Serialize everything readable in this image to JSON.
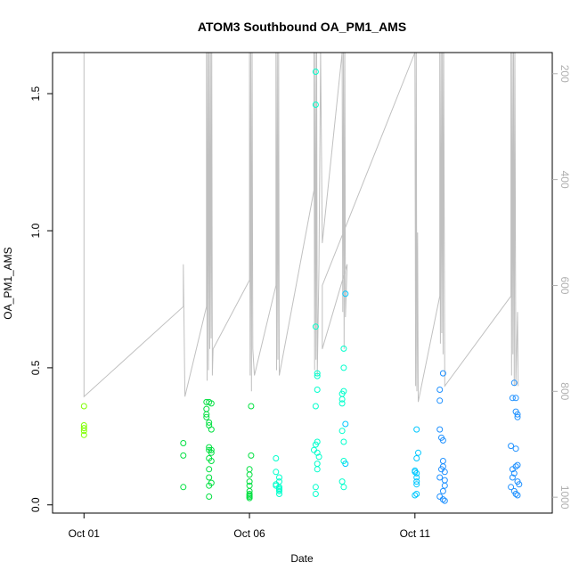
{
  "chart_data": {
    "type": "scatter",
    "title": "ATOM3 Southbound OA_PM1_AMS",
    "xlabel": "Date",
    "ylabel": "OA_PM1_AMS",
    "x_ticks": [
      {
        "value": 1,
        "label": "Oct 01"
      },
      {
        "value": 6,
        "label": "Oct 06"
      },
      {
        "value": 11,
        "label": "Oct 11"
      }
    ],
    "xlim": [
      0.05,
      15.15
    ],
    "ylim": [
      -0.03,
      1.65
    ],
    "y_ticks": [
      0.0,
      0.5,
      1.0,
      1.5
    ],
    "y_tick_labels": [
      "0.0",
      "0.5",
      "1.0",
      "1.5"
    ],
    "y2_ticks": [
      200,
      400,
      600,
      800,
      1000
    ],
    "y2_tick_labels": [
      "200",
      "400",
      "600",
      "800",
      "1000"
    ],
    "y2lim": [
      1030,
      160
    ],
    "altitude_line_color": "#c0c0c0",
    "point_color_scale": [
      "#7fff00",
      "#00e040",
      "#00ffcc",
      "#00c8ff",
      "#1e90ff"
    ],
    "points": [
      {
        "x": 1.0,
        "y": 0.36
      },
      {
        "x": 1.0,
        "y": 0.29
      },
      {
        "x": 1.0,
        "y": 0.28
      },
      {
        "x": 1.0,
        "y": 0.27
      },
      {
        "x": 1.0,
        "y": 0.255
      },
      {
        "x": 4.0,
        "y": 0.225
      },
      {
        "x": 4.0,
        "y": 0.18
      },
      {
        "x": 4.0,
        "y": 0.065
      },
      {
        "x": 4.7,
        "y": 0.375
      },
      {
        "x": 4.7,
        "y": 0.35
      },
      {
        "x": 4.7,
        "y": 0.33
      },
      {
        "x": 4.7,
        "y": 0.32
      },
      {
        "x": 4.78,
        "y": 0.375
      },
      {
        "x": 4.78,
        "y": 0.3
      },
      {
        "x": 4.78,
        "y": 0.29
      },
      {
        "x": 4.78,
        "y": 0.21
      },
      {
        "x": 4.78,
        "y": 0.2
      },
      {
        "x": 4.78,
        "y": 0.17
      },
      {
        "x": 4.78,
        "y": 0.13
      },
      {
        "x": 4.78,
        "y": 0.1
      },
      {
        "x": 4.85,
        "y": 0.37
      },
      {
        "x": 4.85,
        "y": 0.275
      },
      {
        "x": 4.85,
        "y": 0.2
      },
      {
        "x": 4.85,
        "y": 0.19
      },
      {
        "x": 4.85,
        "y": 0.16
      },
      {
        "x": 4.85,
        "y": 0.08
      },
      {
        "x": 4.78,
        "y": 0.07
      },
      {
        "x": 4.78,
        "y": 0.03
      },
      {
        "x": 6.05,
        "y": 0.36
      },
      {
        "x": 6.05,
        "y": 0.18
      },
      {
        "x": 6.0,
        "y": 0.13
      },
      {
        "x": 6.0,
        "y": 0.11
      },
      {
        "x": 6.0,
        "y": 0.085
      },
      {
        "x": 6.0,
        "y": 0.07
      },
      {
        "x": 6.0,
        "y": 0.05
      },
      {
        "x": 6.0,
        "y": 0.04
      },
      {
        "x": 6.0,
        "y": 0.035
      },
      {
        "x": 6.0,
        "y": 0.03
      },
      {
        "x": 6.0,
        "y": 0.025
      },
      {
        "x": 6.8,
        "y": 0.17
      },
      {
        "x": 6.8,
        "y": 0.12
      },
      {
        "x": 6.9,
        "y": 0.1
      },
      {
        "x": 6.9,
        "y": 0.085
      },
      {
        "x": 6.8,
        "y": 0.075
      },
      {
        "x": 6.8,
        "y": 0.07
      },
      {
        "x": 6.9,
        "y": 0.065
      },
      {
        "x": 6.9,
        "y": 0.06
      },
      {
        "x": 6.9,
        "y": 0.055
      },
      {
        "x": 6.9,
        "y": 0.05
      },
      {
        "x": 6.9,
        "y": 0.04
      },
      {
        "x": 8.0,
        "y": 1.58
      },
      {
        "x": 8.0,
        "y": 1.46
      },
      {
        "x": 8.0,
        "y": 0.65
      },
      {
        "x": 8.05,
        "y": 0.48
      },
      {
        "x": 8.05,
        "y": 0.47
      },
      {
        "x": 8.05,
        "y": 0.42
      },
      {
        "x": 8.0,
        "y": 0.36
      },
      {
        "x": 8.05,
        "y": 0.23
      },
      {
        "x": 8.0,
        "y": 0.22
      },
      {
        "x": 7.95,
        "y": 0.2
      },
      {
        "x": 8.05,
        "y": 0.19
      },
      {
        "x": 8.1,
        "y": 0.175
      },
      {
        "x": 8.05,
        "y": 0.15
      },
      {
        "x": 8.05,
        "y": 0.13
      },
      {
        "x": 8.0,
        "y": 0.065
      },
      {
        "x": 8.0,
        "y": 0.04
      },
      {
        "x": 8.9,
        "y": 0.77
      },
      {
        "x": 8.85,
        "y": 0.57
      },
      {
        "x": 8.85,
        "y": 0.5
      },
      {
        "x": 8.85,
        "y": 0.415
      },
      {
        "x": 8.8,
        "y": 0.405
      },
      {
        "x": 8.8,
        "y": 0.385
      },
      {
        "x": 8.8,
        "y": 0.37
      },
      {
        "x": 8.9,
        "y": 0.295
      },
      {
        "x": 8.8,
        "y": 0.27
      },
      {
        "x": 8.85,
        "y": 0.23
      },
      {
        "x": 8.85,
        "y": 0.16
      },
      {
        "x": 8.9,
        "y": 0.15
      },
      {
        "x": 8.8,
        "y": 0.085
      },
      {
        "x": 8.85,
        "y": 0.065
      },
      {
        "x": 11.05,
        "y": 0.275
      },
      {
        "x": 11.1,
        "y": 0.19
      },
      {
        "x": 11.05,
        "y": 0.17
      },
      {
        "x": 11.0,
        "y": 0.125
      },
      {
        "x": 11.0,
        "y": 0.12
      },
      {
        "x": 11.05,
        "y": 0.115
      },
      {
        "x": 11.05,
        "y": 0.1
      },
      {
        "x": 11.05,
        "y": 0.085
      },
      {
        "x": 11.05,
        "y": 0.075
      },
      {
        "x": 11.05,
        "y": 0.04
      },
      {
        "x": 11.0,
        "y": 0.035
      },
      {
        "x": 11.85,
        "y": 0.48
      },
      {
        "x": 11.75,
        "y": 0.42
      },
      {
        "x": 11.75,
        "y": 0.38
      },
      {
        "x": 11.75,
        "y": 0.275
      },
      {
        "x": 11.8,
        "y": 0.245
      },
      {
        "x": 11.85,
        "y": 0.235
      },
      {
        "x": 11.85,
        "y": 0.16
      },
      {
        "x": 11.85,
        "y": 0.14
      },
      {
        "x": 11.8,
        "y": 0.13
      },
      {
        "x": 11.9,
        "y": 0.12
      },
      {
        "x": 11.75,
        "y": 0.1
      },
      {
        "x": 11.9,
        "y": 0.09
      },
      {
        "x": 11.9,
        "y": 0.07
      },
      {
        "x": 11.85,
        "y": 0.05
      },
      {
        "x": 11.75,
        "y": 0.03
      },
      {
        "x": 11.85,
        "y": 0.02
      },
      {
        "x": 11.9,
        "y": 0.015
      },
      {
        "x": 14.0,
        "y": 0.445
      },
      {
        "x": 13.95,
        "y": 0.39
      },
      {
        "x": 14.05,
        "y": 0.39
      },
      {
        "x": 14.05,
        "y": 0.34
      },
      {
        "x": 14.1,
        "y": 0.33
      },
      {
        "x": 14.1,
        "y": 0.32
      },
      {
        "x": 13.9,
        "y": 0.215
      },
      {
        "x": 14.05,
        "y": 0.205
      },
      {
        "x": 14.1,
        "y": 0.145
      },
      {
        "x": 14.05,
        "y": 0.14
      },
      {
        "x": 13.95,
        "y": 0.13
      },
      {
        "x": 14.0,
        "y": 0.115
      },
      {
        "x": 13.95,
        "y": 0.1
      },
      {
        "x": 14.1,
        "y": 0.085
      },
      {
        "x": 14.15,
        "y": 0.075
      },
      {
        "x": 13.9,
        "y": 0.065
      },
      {
        "x": 14.0,
        "y": 0.05
      },
      {
        "x": 14.05,
        "y": 0.04
      },
      {
        "x": 14.1,
        "y": 0.035
      }
    ],
    "altitude_series": [
      [
        1.0,
        160
      ],
      [
        1.0,
        810
      ],
      [
        4.0,
        640
      ],
      [
        4.0,
        560
      ],
      [
        4.05,
        810
      ],
      [
        4.7,
        640
      ],
      [
        4.7,
        160
      ],
      [
        4.72,
        780
      ],
      [
        4.74,
        160
      ],
      [
        4.76,
        760
      ],
      [
        4.78,
        160
      ],
      [
        4.8,
        720
      ],
      [
        4.82,
        160
      ],
      [
        4.84,
        700
      ],
      [
        4.86,
        160
      ],
      [
        4.88,
        770
      ],
      [
        4.9,
        720
      ],
      [
        6.0,
        590
      ],
      [
        6.0,
        160
      ],
      [
        6.02,
        770
      ],
      [
        6.04,
        160
      ],
      [
        6.06,
        800
      ],
      [
        6.08,
        160
      ],
      [
        6.1,
        720
      ],
      [
        6.15,
        770
      ],
      [
        6.8,
        600
      ],
      [
        6.8,
        160
      ],
      [
        6.82,
        760
      ],
      [
        6.84,
        160
      ],
      [
        6.86,
        740
      ],
      [
        6.88,
        160
      ],
      [
        6.9,
        770
      ],
      [
        7.95,
        420
      ],
      [
        7.95,
        160
      ],
      [
        7.97,
        760
      ],
      [
        7.99,
        160
      ],
      [
        8.01,
        740
      ],
      [
        8.03,
        160
      ],
      [
        8.05,
        770
      ],
      [
        8.1,
        560
      ],
      [
        8.15,
        160
      ],
      [
        8.2,
        520
      ],
      [
        8.8,
        160
      ],
      [
        8.82,
        650
      ],
      [
        8.84,
        160
      ],
      [
        8.86,
        720
      ],
      [
        8.88,
        160
      ],
      [
        8.9,
        660
      ],
      [
        8.95,
        560
      ],
      [
        8.2,
        720
      ],
      [
        8.2,
        600
      ],
      [
        11.0,
        160
      ],
      [
        11.02,
        790
      ],
      [
        11.04,
        160
      ],
      [
        11.06,
        800
      ],
      [
        11.08,
        500
      ],
      [
        11.1,
        820
      ],
      [
        11.75,
        620
      ],
      [
        11.75,
        160
      ],
      [
        11.77,
        710
      ],
      [
        11.79,
        160
      ],
      [
        11.81,
        690
      ],
      [
        11.83,
        160
      ],
      [
        11.85,
        730
      ],
      [
        11.87,
        160
      ],
      [
        11.9,
        790
      ],
      [
        13.9,
        620
      ],
      [
        13.9,
        160
      ],
      [
        13.92,
        770
      ],
      [
        13.94,
        160
      ],
      [
        13.96,
        730
      ],
      [
        13.98,
        160
      ],
      [
        14.0,
        790
      ],
      [
        14.02,
        160
      ],
      [
        14.05,
        790
      ],
      [
        14.1,
        650
      ],
      [
        14.12,
        790
      ]
    ]
  }
}
